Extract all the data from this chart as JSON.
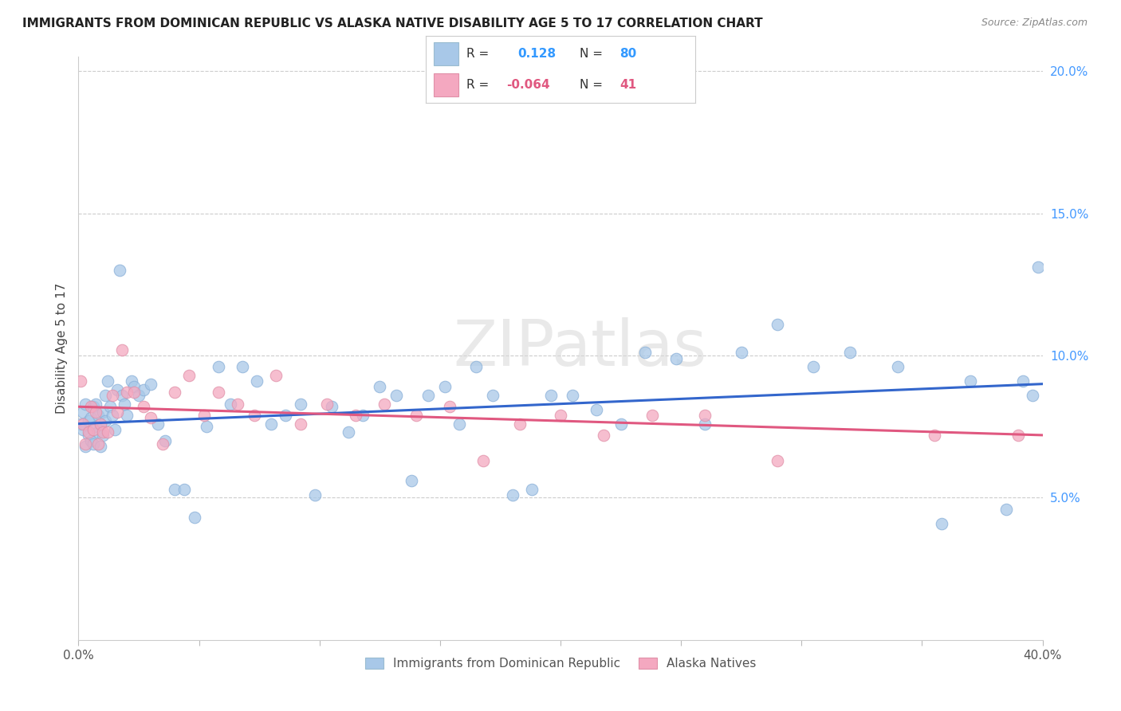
{
  "title": "IMMIGRANTS FROM DOMINICAN REPUBLIC VS ALASKA NATIVE DISABILITY AGE 5 TO 17 CORRELATION CHART",
  "source": "Source: ZipAtlas.com",
  "ylabel": "Disability Age 5 to 17",
  "xlim": [
    0.0,
    0.4
  ],
  "ylim": [
    0.0,
    0.205
  ],
  "xticks": [
    0.0,
    0.05,
    0.1,
    0.15,
    0.2,
    0.25,
    0.3,
    0.35,
    0.4
  ],
  "xticklabels": [
    "0.0%",
    "",
    "",
    "",
    "",
    "",
    "",
    "",
    "40.0%"
  ],
  "yticks_right": [
    0.05,
    0.1,
    0.15,
    0.2
  ],
  "ytick_labels_right": [
    "5.0%",
    "10.0%",
    "15.0%",
    "20.0%"
  ],
  "blue_R": 0.128,
  "blue_N": 80,
  "pink_R": -0.064,
  "pink_N": 41,
  "blue_color": "#a8c8e8",
  "pink_color": "#f4a8c0",
  "blue_line_color": "#3366cc",
  "pink_line_color": "#e05880",
  "watermark": "ZIPatlas",
  "blue_line_x0": 0.0,
  "blue_line_y0": 0.076,
  "blue_line_x1": 0.4,
  "blue_line_y1": 0.09,
  "pink_line_x0": 0.0,
  "pink_line_y0": 0.082,
  "pink_line_x1": 0.4,
  "pink_line_y1": 0.072,
  "blue_x": [
    0.001,
    0.002,
    0.002,
    0.003,
    0.003,
    0.004,
    0.004,
    0.005,
    0.005,
    0.006,
    0.006,
    0.007,
    0.007,
    0.008,
    0.008,
    0.009,
    0.009,
    0.01,
    0.01,
    0.011,
    0.011,
    0.012,
    0.013,
    0.014,
    0.015,
    0.016,
    0.017,
    0.018,
    0.019,
    0.02,
    0.022,
    0.023,
    0.025,
    0.027,
    0.03,
    0.033,
    0.036,
    0.04,
    0.044,
    0.048,
    0.053,
    0.058,
    0.063,
    0.068,
    0.074,
    0.08,
    0.086,
    0.092,
    0.098,
    0.105,
    0.112,
    0.118,
    0.125,
    0.132,
    0.138,
    0.145,
    0.152,
    0.158,
    0.165,
    0.172,
    0.18,
    0.188,
    0.196,
    0.205,
    0.215,
    0.225,
    0.235,
    0.248,
    0.26,
    0.275,
    0.29,
    0.305,
    0.32,
    0.34,
    0.358,
    0.37,
    0.385,
    0.392,
    0.396,
    0.398
  ],
  "blue_y": [
    0.076,
    0.074,
    0.08,
    0.068,
    0.083,
    0.072,
    0.077,
    0.07,
    0.078,
    0.082,
    0.069,
    0.075,
    0.083,
    0.073,
    0.079,
    0.076,
    0.068,
    0.08,
    0.072,
    0.086,
    0.077,
    0.091,
    0.082,
    0.079,
    0.074,
    0.088,
    0.13,
    0.086,
    0.083,
    0.079,
    0.091,
    0.089,
    0.086,
    0.088,
    0.09,
    0.076,
    0.07,
    0.053,
    0.053,
    0.043,
    0.075,
    0.096,
    0.083,
    0.096,
    0.091,
    0.076,
    0.079,
    0.083,
    0.051,
    0.082,
    0.073,
    0.079,
    0.089,
    0.086,
    0.056,
    0.086,
    0.089,
    0.076,
    0.096,
    0.086,
    0.051,
    0.053,
    0.086,
    0.086,
    0.081,
    0.076,
    0.101,
    0.099,
    0.076,
    0.101,
    0.111,
    0.096,
    0.101,
    0.096,
    0.041,
    0.091,
    0.046,
    0.091,
    0.086,
    0.131
  ],
  "pink_x": [
    0.001,
    0.002,
    0.003,
    0.004,
    0.005,
    0.006,
    0.007,
    0.008,
    0.009,
    0.01,
    0.012,
    0.014,
    0.016,
    0.018,
    0.02,
    0.023,
    0.027,
    0.03,
    0.035,
    0.04,
    0.046,
    0.052,
    0.058,
    0.066,
    0.073,
    0.082,
    0.092,
    0.103,
    0.115,
    0.127,
    0.14,
    0.154,
    0.168,
    0.183,
    0.2,
    0.218,
    0.238,
    0.26,
    0.29,
    0.355,
    0.39
  ],
  "pink_y": [
    0.091,
    0.076,
    0.069,
    0.073,
    0.082,
    0.074,
    0.08,
    0.069,
    0.076,
    0.073,
    0.073,
    0.086,
    0.08,
    0.102,
    0.087,
    0.087,
    0.082,
    0.078,
    0.069,
    0.087,
    0.093,
    0.079,
    0.087,
    0.083,
    0.079,
    0.093,
    0.076,
    0.083,
    0.079,
    0.083,
    0.079,
    0.082,
    0.063,
    0.076,
    0.079,
    0.072,
    0.079,
    0.079,
    0.063,
    0.072,
    0.072
  ]
}
